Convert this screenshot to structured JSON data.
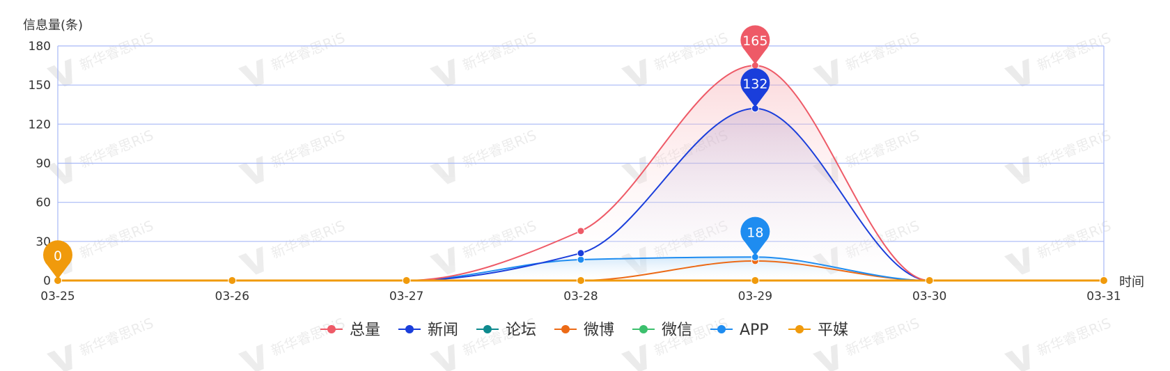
{
  "chart_data": {
    "type": "area",
    "categories": [
      "03-25",
      "03-26",
      "03-27",
      "03-28",
      "03-29",
      "03-30",
      "03-31"
    ],
    "xlabel": "时间",
    "ylabel": "信息量(条)",
    "ylim": [
      0,
      180
    ],
    "yticks": [
      0,
      30,
      60,
      90,
      120,
      150,
      180
    ],
    "grid": true,
    "legend_position": "bottom",
    "series": [
      {
        "name": "总量",
        "color": "#EE5A67",
        "values": [
          0,
          0,
          0,
          38,
          165,
          0,
          0
        ]
      },
      {
        "name": "新闻",
        "color": "#1A3EDB",
        "values": [
          0,
          0,
          0,
          21,
          132,
          0,
          0
        ]
      },
      {
        "name": "论坛",
        "color": "#0E8A8E",
        "values": [
          0,
          0,
          0,
          0,
          0,
          0,
          0
        ]
      },
      {
        "name": "微博",
        "color": "#EC6A16",
        "values": [
          0,
          0,
          0,
          0,
          15,
          0,
          0
        ]
      },
      {
        "name": "微信",
        "color": "#3CC06D",
        "values": [
          0,
          0,
          0,
          0,
          0,
          0,
          0
        ]
      },
      {
        "name": "APP",
        "color": "#1E8CF0",
        "values": [
          0,
          0,
          0,
          16,
          18,
          0,
          0
        ]
      },
      {
        "name": "平媒",
        "color": "#F09A0C",
        "values": [
          0,
          0,
          0,
          0,
          0,
          0,
          0
        ]
      }
    ],
    "annotations": [
      {
        "series": "总量",
        "category": "03-29",
        "label": "165",
        "color": "#EE5A67"
      },
      {
        "series": "新闻",
        "category": "03-29",
        "label": "132",
        "color": "#1A3EDB"
      },
      {
        "series": "APP",
        "category": "03-29",
        "label": "18",
        "color": "#1E8CF0"
      },
      {
        "series": "平媒",
        "category": "03-25",
        "label": "0",
        "color": "#F09A0C"
      }
    ]
  },
  "watermark": "新华睿思RiS"
}
